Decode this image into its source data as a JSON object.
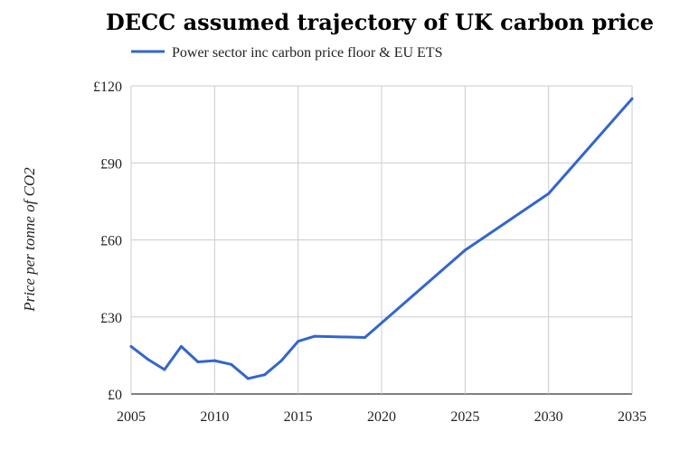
{
  "chart_data": {
    "type": "line",
    "title": "DECC assumed trajectory of UK carbon price",
    "ylabel": "Price per tonne of CO2",
    "xlabel": "",
    "xlim": [
      2005,
      2035
    ],
    "ylim": [
      0,
      120
    ],
    "x_ticks": [
      "2005",
      "2010",
      "2015",
      "2020",
      "2025",
      "2030",
      "2035"
    ],
    "y_ticks": [
      "£0",
      "£30",
      "£60",
      "£90",
      "£120"
    ],
    "grid": true,
    "legend_position": "top-left",
    "series": [
      {
        "name": "Power sector inc carbon price floor & EU ETS",
        "color": "#3366cc",
        "points": [
          [
            2005,
            18.5
          ],
          [
            2006,
            13.5
          ],
          [
            2007,
            9.5
          ],
          [
            2008,
            18.5
          ],
          [
            2009,
            12.5
          ],
          [
            2010,
            13
          ],
          [
            2011,
            11.5
          ],
          [
            2012,
            6
          ],
          [
            2013,
            7.5
          ],
          [
            2014,
            13
          ],
          [
            2015,
            20.5
          ],
          [
            2016,
            22.5
          ],
          [
            2019,
            22
          ],
          [
            2025,
            56
          ],
          [
            2030,
            78
          ],
          [
            2035,
            115
          ]
        ]
      }
    ]
  }
}
